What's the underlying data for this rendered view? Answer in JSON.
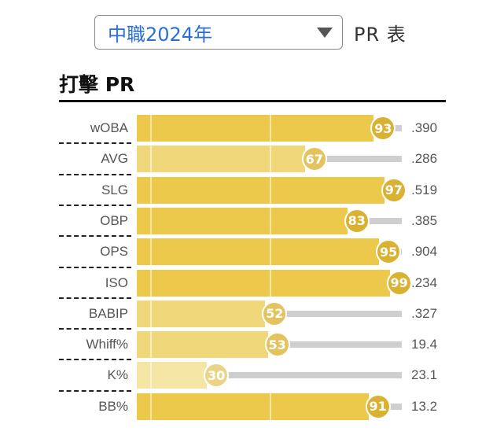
{
  "header": {
    "season_value": "中職2024年",
    "pr_table_label": "PR 表"
  },
  "section": {
    "title": "打擊 PR"
  },
  "colors": {
    "bar_strong": "#ecc94b",
    "bar_medium": "#f0d77a",
    "bar_light": "#f5e6a6",
    "badge_strong": "#d9b233",
    "badge_medium": "#e2c35e",
    "badge_light": "#ead48a",
    "rest_track": "#cfcfcf"
  },
  "chart_data": {
    "type": "bar",
    "categories": [
      "wOBA",
      "AVG",
      "SLG",
      "OBP",
      "OPS",
      "ISO",
      "BABIP",
      "Whiff%",
      "K%",
      "BB%"
    ],
    "percentiles": [
      93,
      67,
      97,
      83,
      95,
      99,
      52,
      53,
      30,
      91
    ],
    "stat_values": [
      ".390",
      ".286",
      ".519",
      ".385",
      ".904",
      ".234",
      ".327",
      "19.4",
      "23.1",
      "13.2"
    ],
    "xlim": [
      0,
      100
    ]
  }
}
